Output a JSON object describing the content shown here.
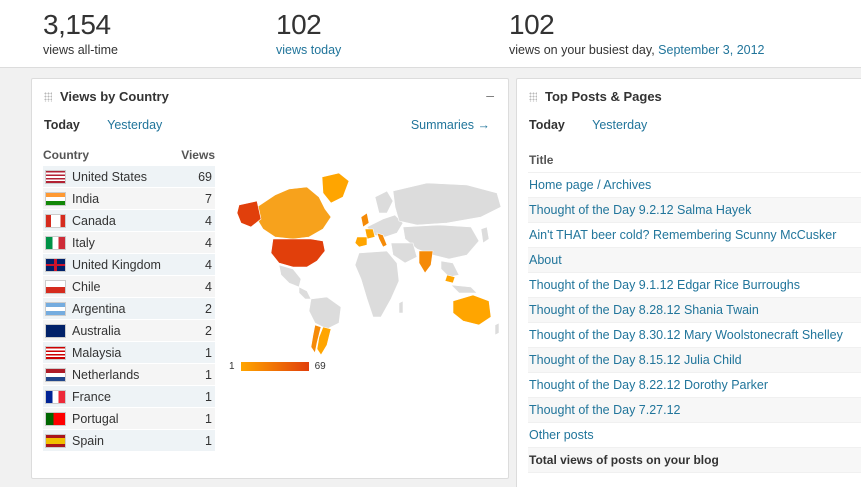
{
  "stats": {
    "views_all_time": {
      "value": "3,154",
      "label": "views all-time"
    },
    "views_today": {
      "value": "102",
      "label": "views today"
    },
    "busiest_day": {
      "value": "102",
      "label": "views on your busiest day,",
      "date": "September 3, 2012"
    }
  },
  "country_panel": {
    "title": "Views by Country",
    "collapse": "–",
    "tab_today": "Today",
    "tab_yesterday": "Yesterday",
    "summaries": "Summaries →",
    "col_country": "Country",
    "col_views": "Views",
    "rows": [
      {
        "country": "United States",
        "views": "69",
        "flag": "us"
      },
      {
        "country": "India",
        "views": "7",
        "flag": "in"
      },
      {
        "country": "Canada",
        "views": "4",
        "flag": "ca"
      },
      {
        "country": "Italy",
        "views": "4",
        "flag": "it"
      },
      {
        "country": "United Kingdom",
        "views": "4",
        "flag": "gb"
      },
      {
        "country": "Chile",
        "views": "4",
        "flag": "cl"
      },
      {
        "country": "Argentina",
        "views": "2",
        "flag": "ar"
      },
      {
        "country": "Australia",
        "views": "2",
        "flag": "au"
      },
      {
        "country": "Malaysia",
        "views": "1",
        "flag": "my"
      },
      {
        "country": "Netherlands",
        "views": "1",
        "flag": "nl"
      },
      {
        "country": "France",
        "views": "1",
        "flag": "fr"
      },
      {
        "country": "Portugal",
        "views": "1",
        "flag": "pt"
      },
      {
        "country": "Spain",
        "views": "1",
        "flag": "es"
      }
    ],
    "legend_min": "1",
    "legend_max": "69",
    "colors": {
      "high": "#e13f0b",
      "mid": "#f58a07",
      "low": "#ffa500",
      "none": "#dcdcdc"
    }
  },
  "posts_panel": {
    "title": "Top Posts & Pages",
    "tab_today": "Today",
    "tab_yesterday": "Yesterday",
    "col_title": "Title",
    "posts": [
      "Home page / Archives",
      "Thought of the Day 9.2.12 Salma Hayek",
      "Ain't THAT beer cold? Remembering Scunny McCusker",
      "About",
      "Thought of the Day 9.1.12 Edgar Rice Burroughs",
      "Thought of the Day 8.28.12 Shania Twain",
      "Thought of the Day 8.30.12 Mary Woolstonecraft Shelley",
      "Thought of the Day 8.15.12 Julia Child",
      "Thought of the Day 8.22.12 Dorothy Parker",
      "Thought of the Day 7.27.12"
    ],
    "other_posts": "Other posts",
    "total_label": "Total views of posts on your blog"
  }
}
